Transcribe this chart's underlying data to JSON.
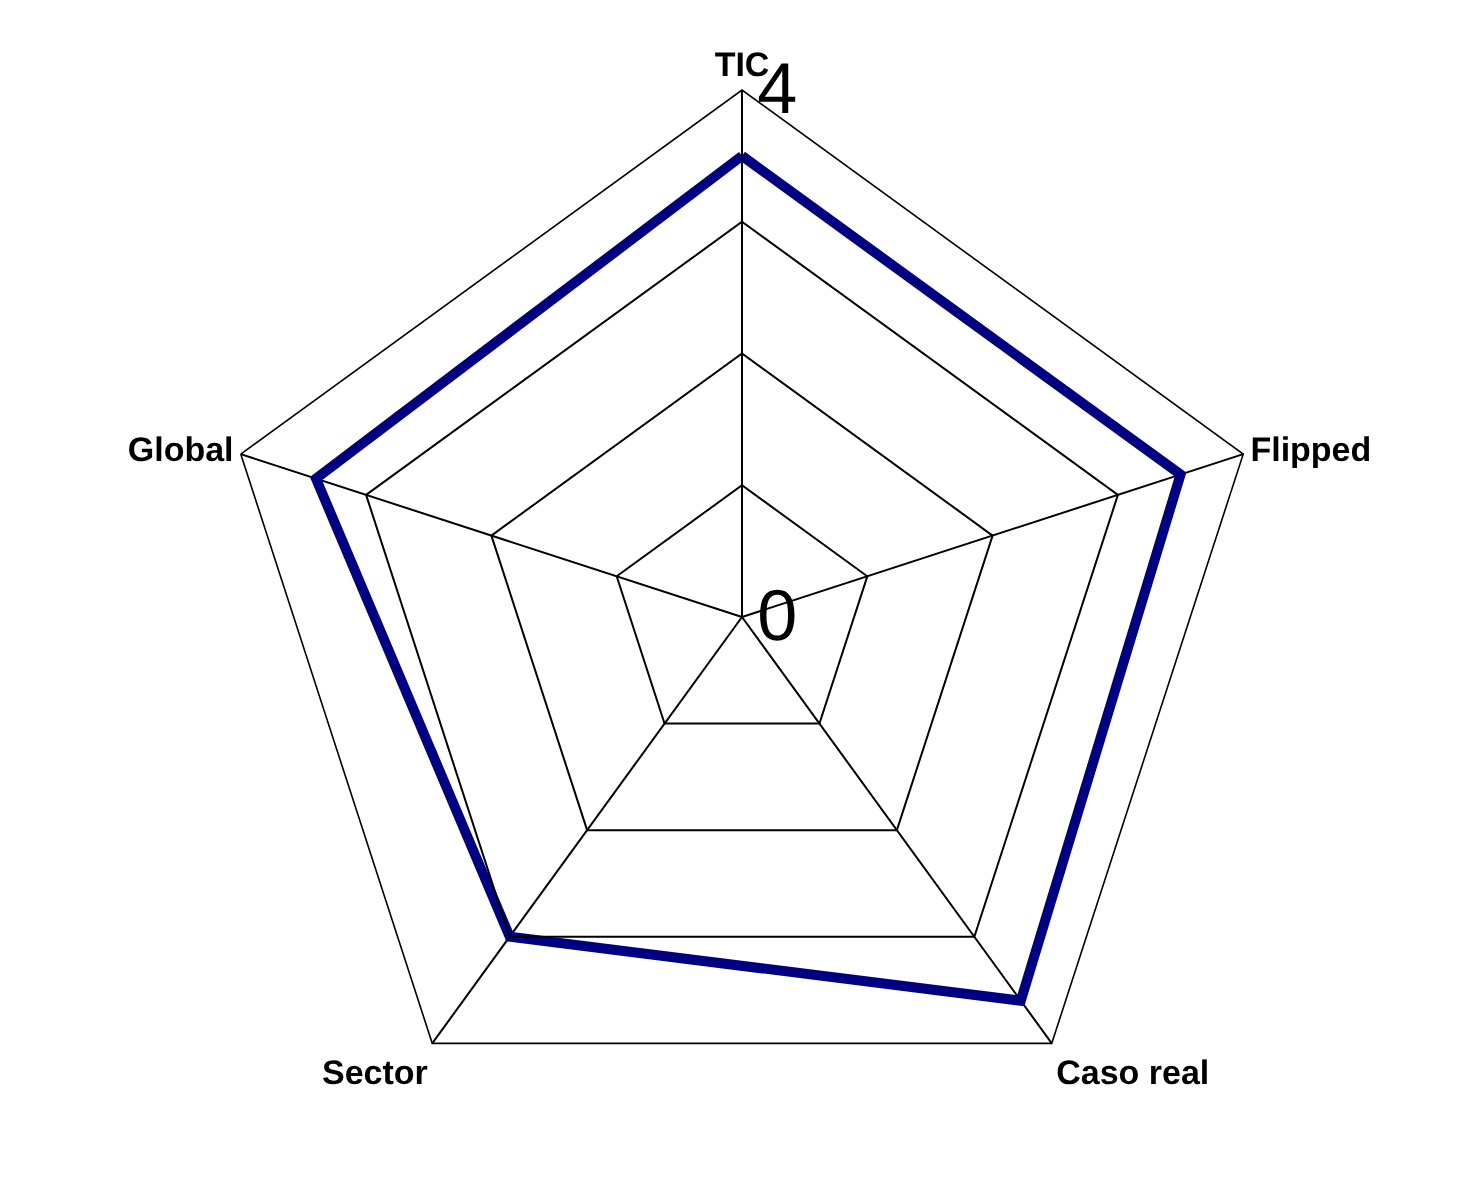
{
  "chart_data": {
    "type": "radar",
    "categories": [
      "TIC",
      "Flipped",
      "Caso real",
      "Sector",
      "Global"
    ],
    "series": [
      {
        "color": "#000080",
        "values": [
          3.5,
          3.5,
          3.6,
          3.0,
          3.4
        ]
      }
    ],
    "ylim": [
      0,
      4
    ],
    "yticks": [
      0,
      4
    ],
    "grid": true
  }
}
